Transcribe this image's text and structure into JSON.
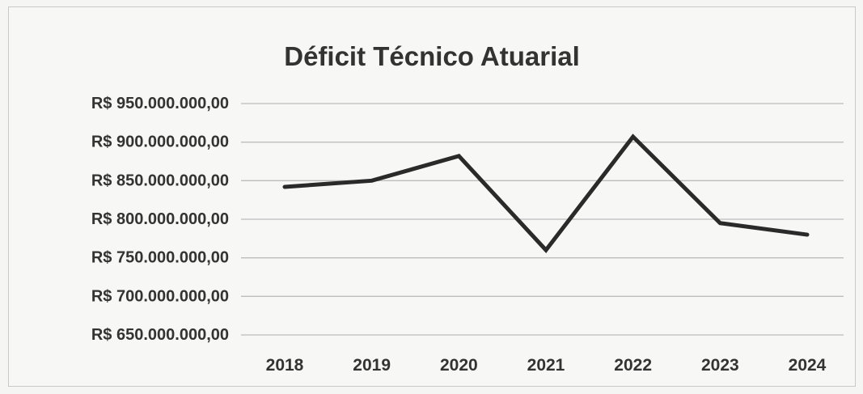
{
  "chart_data": {
    "type": "line",
    "title": "Déficit Técnico Atuarial",
    "xlabel": "",
    "ylabel": "",
    "categories": [
      "2018",
      "2019",
      "2020",
      "2021",
      "2022",
      "2023",
      "2024"
    ],
    "series": [
      {
        "values": [
          842000000,
          850000000,
          882000000,
          760000000,
          907000000,
          795000000,
          780000000
        ],
        "color": "#2a2a2a"
      }
    ],
    "yticks": [
      650000000,
      700000000,
      750000000,
      800000000,
      850000000,
      900000000,
      950000000
    ],
    "ytick_labels": [
      "R$ 650.000.000,00",
      "R$ 700.000.000,00",
      "R$ 750.000.000,00",
      "R$ 800.000.000,00",
      "R$ 850.000.000,00",
      "R$ 900.000.000,00",
      "R$ 950.000.000,00"
    ],
    "ylim": [
      650000000,
      950000000
    ],
    "grid": true,
    "legend": "none"
  }
}
